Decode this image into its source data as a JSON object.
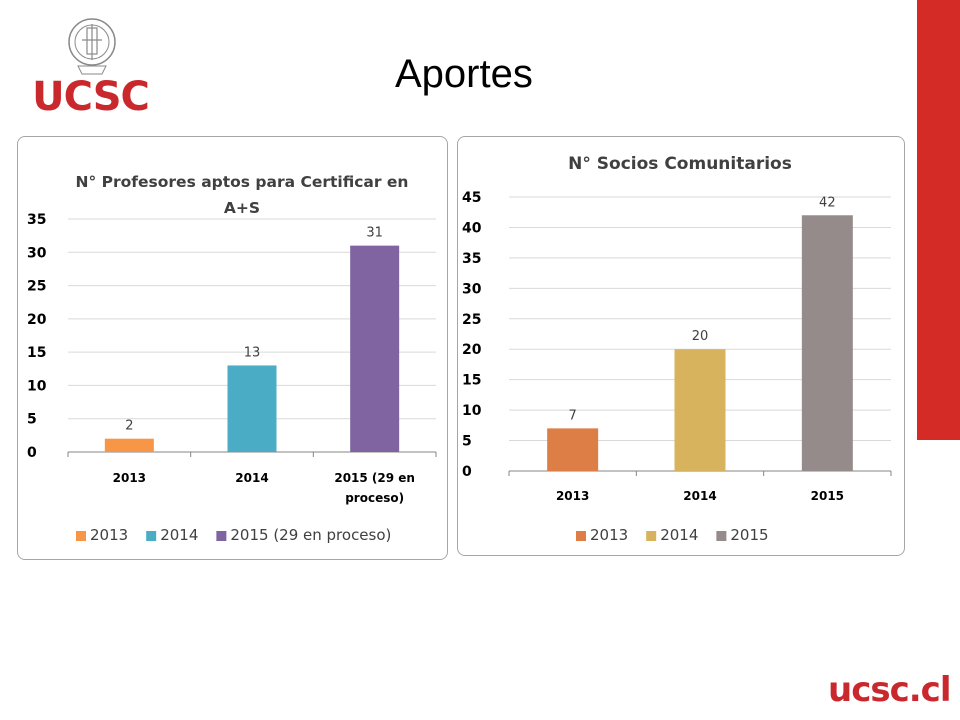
{
  "header": {
    "logo_text": "UCSC",
    "title": "Aportes"
  },
  "footer": {
    "logo_text": "ucsc.cl"
  },
  "colors": {
    "brand_red": "#d52b27",
    "logo_red": "#c9282d"
  },
  "chart_data": [
    {
      "type": "bar",
      "title": "N° Profesores aptos para  Certificar en A+S",
      "title_lines": [
        "N° Profesores aptos para  Certificar en",
        "A+S"
      ],
      "categories": [
        "2013",
        "2014",
        "2015 (29 en proceso)"
      ],
      "category_lines": [
        [
          "2013"
        ],
        [
          "2014"
        ],
        [
          "2015 (29 en",
          "proceso)"
        ]
      ],
      "values": [
        2,
        13,
        31
      ],
      "colors": [
        "#f79646",
        "#4bacc6",
        "#8064a2"
      ],
      "ylim": [
        0,
        35
      ],
      "yticks": [
        0,
        5,
        10,
        15,
        20,
        25,
        30,
        35
      ],
      "grid": true,
      "legend": [
        "2013",
        "2014",
        "2015 (29 en proceso)"
      ],
      "legend_position": "bottom"
    },
    {
      "type": "bar",
      "title": "N° Socios Comunitarios",
      "title_lines": [
        "N° Socios Comunitarios"
      ],
      "categories": [
        "2013",
        "2014",
        "2015"
      ],
      "category_lines": [
        [
          "2013"
        ],
        [
          "2014"
        ],
        [
          "2015"
        ]
      ],
      "values": [
        7,
        20,
        42
      ],
      "colors": [
        "#dd7e47",
        "#d8b35e",
        "#968b8b"
      ],
      "ylim": [
        0,
        45
      ],
      "yticks": [
        0,
        5,
        10,
        15,
        20,
        25,
        30,
        35,
        40,
        45
      ],
      "grid": true,
      "legend": [
        "2013",
        "2014",
        "2015"
      ],
      "legend_position": "bottom"
    }
  ]
}
